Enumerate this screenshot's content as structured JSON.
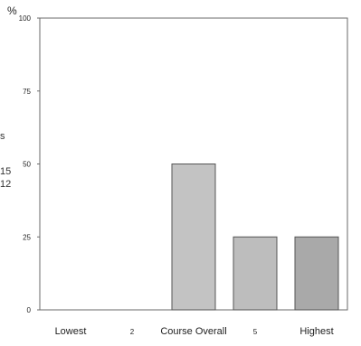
{
  "chart_data": {
    "type": "bar",
    "title": "",
    "xlabel": "",
    "ylabel": "%",
    "ylim": [
      0,
      100
    ],
    "yticks": [
      0,
      25,
      50,
      75,
      100
    ],
    "grid": false,
    "categories": [
      "Lowest",
      "2",
      "Course Overall",
      "5",
      "Highest"
    ],
    "series": [
      {
        "values": [
          0,
          0,
          50,
          25,
          25
        ]
      }
    ],
    "bar_colors": [
      "#c8c8c8",
      "#c8c8c8",
      "#c3c3c3",
      "#bdbdbd",
      "#a9a9a9"
    ],
    "cut_off_labels": [
      "s",
      "15",
      "12"
    ]
  }
}
